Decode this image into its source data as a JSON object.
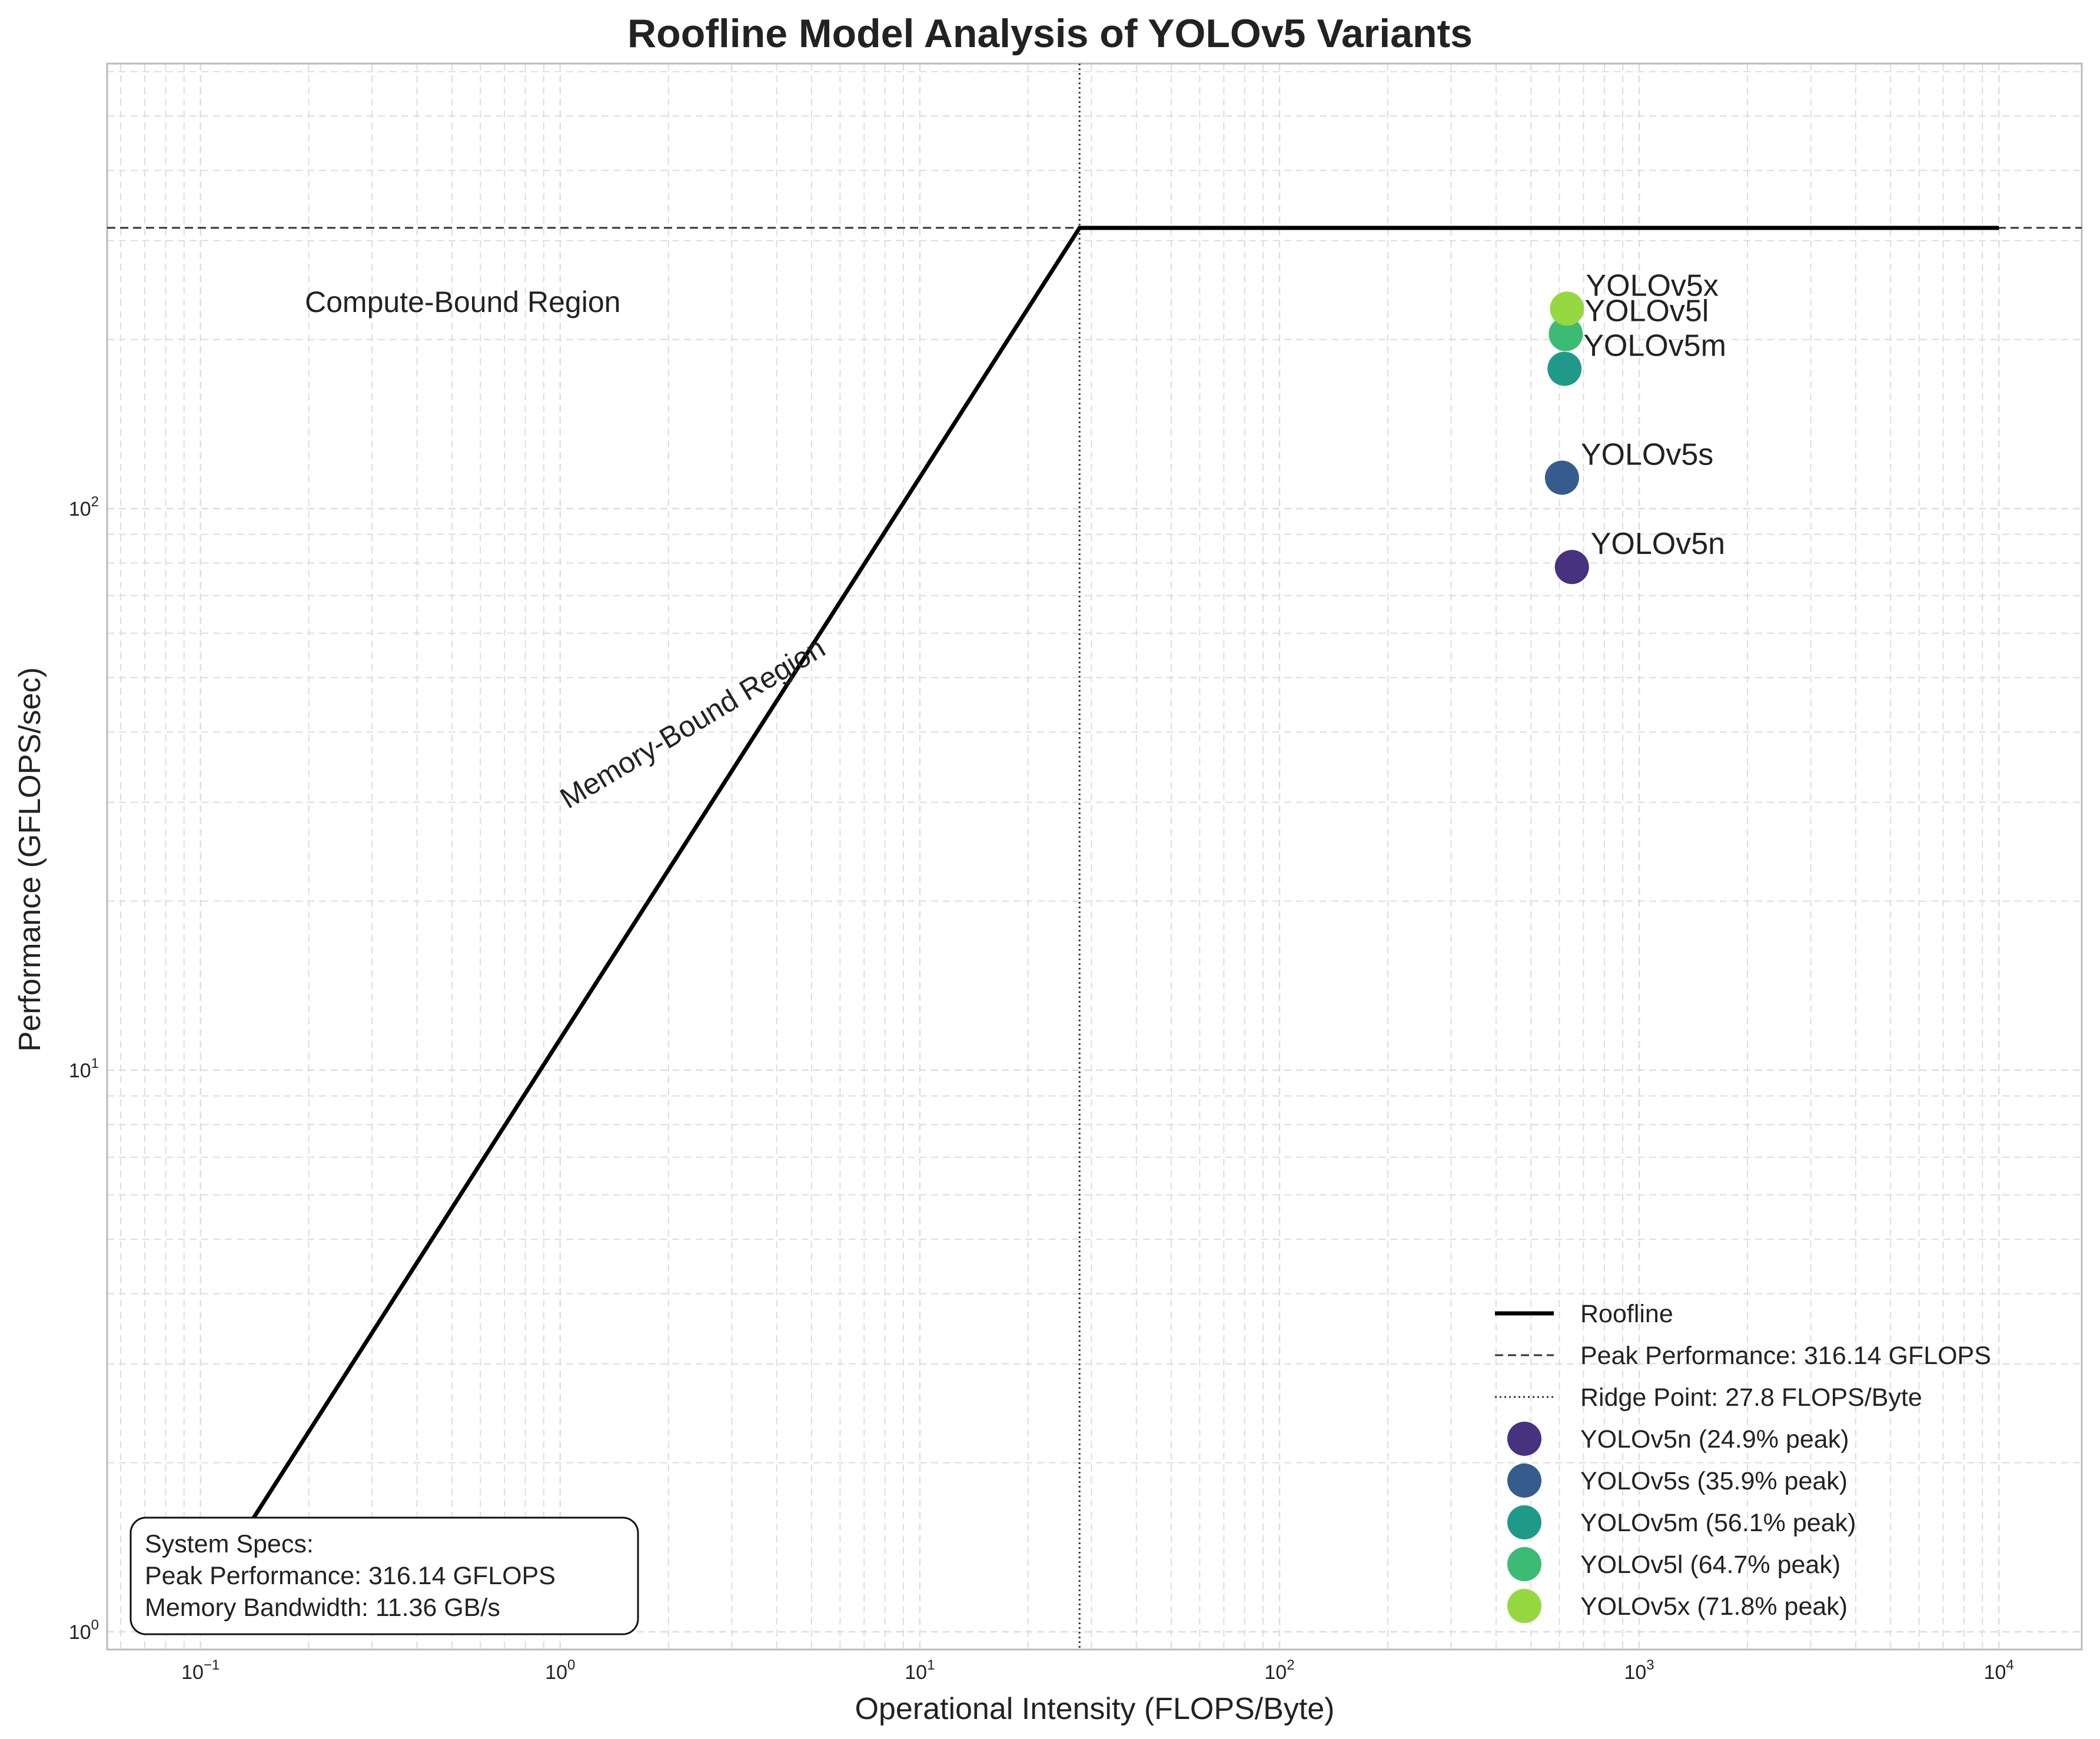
{
  "chart_data": {
    "type": "line",
    "title": "Roofline Model Analysis of YOLOv5 Variants",
    "xlabel": "Operational Intensity (FLOPS/Byte)",
    "ylabel": "Performance (GFLOPS/sec)",
    "x_scale": "log",
    "y_scale": "log",
    "xlim": [
      0.055,
      17000
    ],
    "ylim": [
      0.93,
      620
    ],
    "grid": true,
    "x_ticks": [
      {
        "base": "10",
        "exp": "−1",
        "value": 0.1
      },
      {
        "base": "10",
        "exp": "0",
        "value": 1
      },
      {
        "base": "10",
        "exp": "1",
        "value": 10
      },
      {
        "base": "10",
        "exp": "2",
        "value": 100
      },
      {
        "base": "10",
        "exp": "3",
        "value": 1000
      },
      {
        "base": "10",
        "exp": "4",
        "value": 10000
      }
    ],
    "y_ticks": [
      {
        "base": "10",
        "exp": "0",
        "value": 1
      },
      {
        "base": "10",
        "exp": "1",
        "value": 10
      },
      {
        "base": "10",
        "exp": "2",
        "value": 100
      }
    ],
    "peak_performance": 316.14,
    "memory_bandwidth": 11.36,
    "ridge_point": 27.8,
    "roofline": {
      "x": [
        0.1,
        27.8,
        10000
      ],
      "y": [
        1.136,
        316.14,
        316.14
      ]
    },
    "series": [
      {
        "name": "YOLOv5n",
        "label": "YOLOv5n",
        "legend": "YOLOv5n (24.9% peak)",
        "x": 650,
        "y": 78.7,
        "color": "#46327e"
      },
      {
        "name": "YOLOv5s",
        "label": "YOLOv5s",
        "legend": "YOLOv5s (35.9% peak)",
        "x": 610,
        "y": 113.5,
        "color": "#365c8d"
      },
      {
        "name": "YOLOv5m",
        "label": "YOLOv5m",
        "legend": "YOLOv5m (56.1% peak)",
        "x": 620,
        "y": 177.4,
        "color": "#1f9a8a"
      },
      {
        "name": "YOLOv5l",
        "label": "YOLOv5l",
        "legend": "YOLOv5l (64.7% peak)",
        "x": 625,
        "y": 204.5,
        "color": "#3cbb75"
      },
      {
        "name": "YOLOv5x",
        "label": "YOLOv5x",
        "legend": "YOLOv5x (71.8% peak)",
        "x": 630,
        "y": 227.0,
        "color": "#95d840"
      }
    ],
    "annotations": {
      "compute_region": "Compute-Bound Region",
      "memory_region": "Memory-Bound Region"
    },
    "legend": {
      "placement": "lower-right",
      "roofline": "Roofline",
      "peak": "Peak Performance: 316.14 GFLOPS",
      "ridge": "Ridge Point: 27.8 FLOPS/Byte"
    },
    "specs_box": {
      "line1": "System Specs:",
      "line2": "Peak Performance: 316.14 GFLOPS",
      "line3": "Memory Bandwidth: 11.36 GB/s"
    }
  }
}
